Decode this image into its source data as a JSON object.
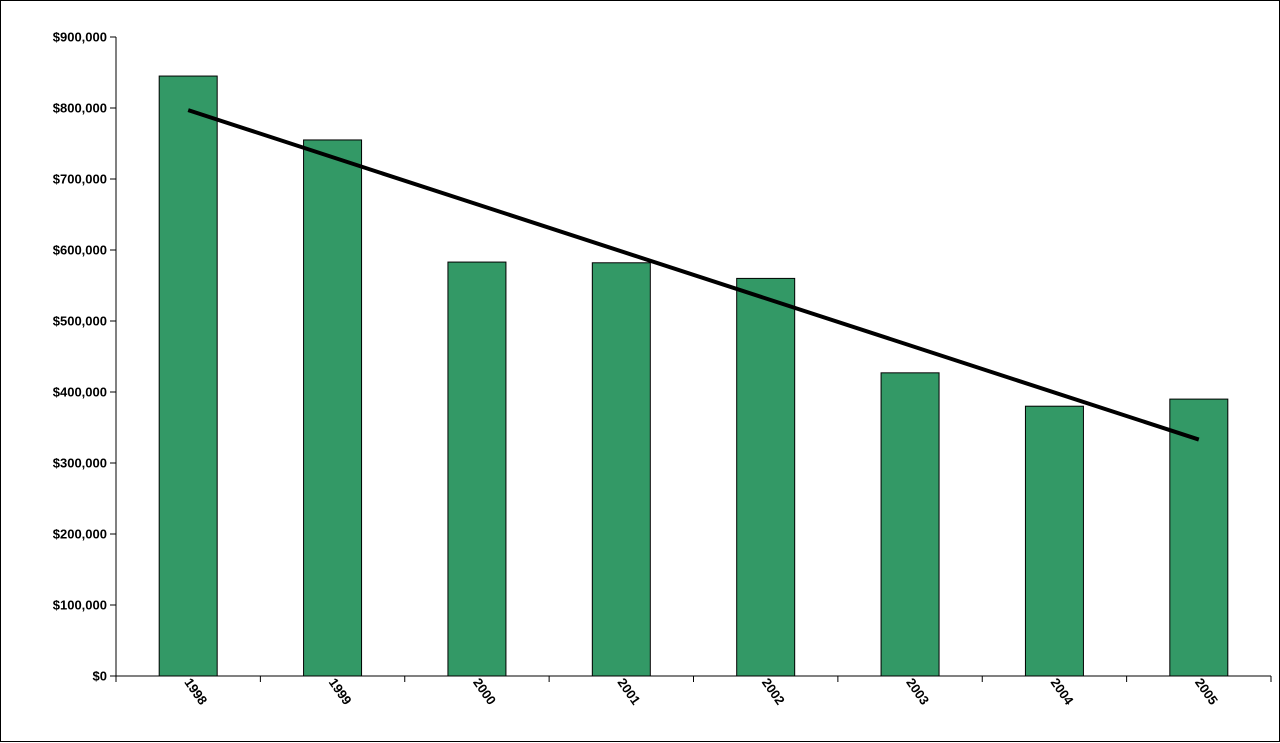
{
  "chart_data": {
    "type": "bar",
    "title": "",
    "xlabel": "",
    "ylabel": "",
    "categories": [
      "1998",
      "1999",
      "2000",
      "2001",
      "2002",
      "2003",
      "2004",
      "2005"
    ],
    "values": [
      845000,
      755000,
      583000,
      582000,
      560000,
      427000,
      380000,
      390000
    ],
    "ylim": [
      0,
      900000
    ],
    "y_ticks": [
      0,
      100000,
      200000,
      300000,
      400000,
      500000,
      600000,
      700000,
      800000,
      900000
    ],
    "y_tick_labels": [
      "$0",
      "$100,000",
      "$200,000",
      "$300,000",
      "$400,000",
      "$500,000",
      "$600,000",
      "$700,000",
      "$800,000",
      "$900,000"
    ],
    "trendline": {
      "type": "linear",
      "start": 797000,
      "end": 333000
    },
    "grid": false,
    "legend": "none",
    "colors": {
      "bar": "#339966",
      "bar_border": "#000000",
      "trendline": "#000000"
    }
  }
}
